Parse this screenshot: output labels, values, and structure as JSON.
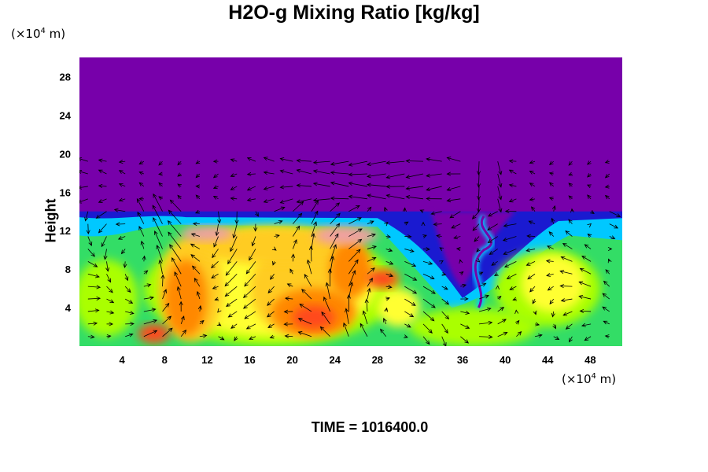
{
  "chart_data": {
    "type": "heatmap",
    "title": "H2O-g Mixing Ratio [kg/kg]",
    "ylabel": "Height",
    "x_unit_base": "(×10",
    "x_unit_exp": "4",
    "x_unit_tail": " m)",
    "y_unit_base": "(×10",
    "y_unit_exp": "4",
    "y_unit_tail": " m)",
    "xlim": [
      0,
      51
    ],
    "ylim": [
      0,
      30
    ],
    "x_ticks": [
      "4",
      "8",
      "12",
      "16",
      "20",
      "24",
      "28",
      "32",
      "36",
      "40",
      "44",
      "48"
    ],
    "y_ticks": [
      "4",
      "8",
      "12",
      "16",
      "20",
      "24",
      "28"
    ],
    "footer": "TIME = 1016400.0",
    "colors": {
      "background": "#7700aa",
      "scale": [
        "#7700aa",
        "#1a1ad0",
        "#00c8ff",
        "#33dd66",
        "#aaff00",
        "#ffff33",
        "#ffcc22",
        "#ff8800",
        "#ff4a1a",
        "#f0a0a0"
      ]
    }
  }
}
